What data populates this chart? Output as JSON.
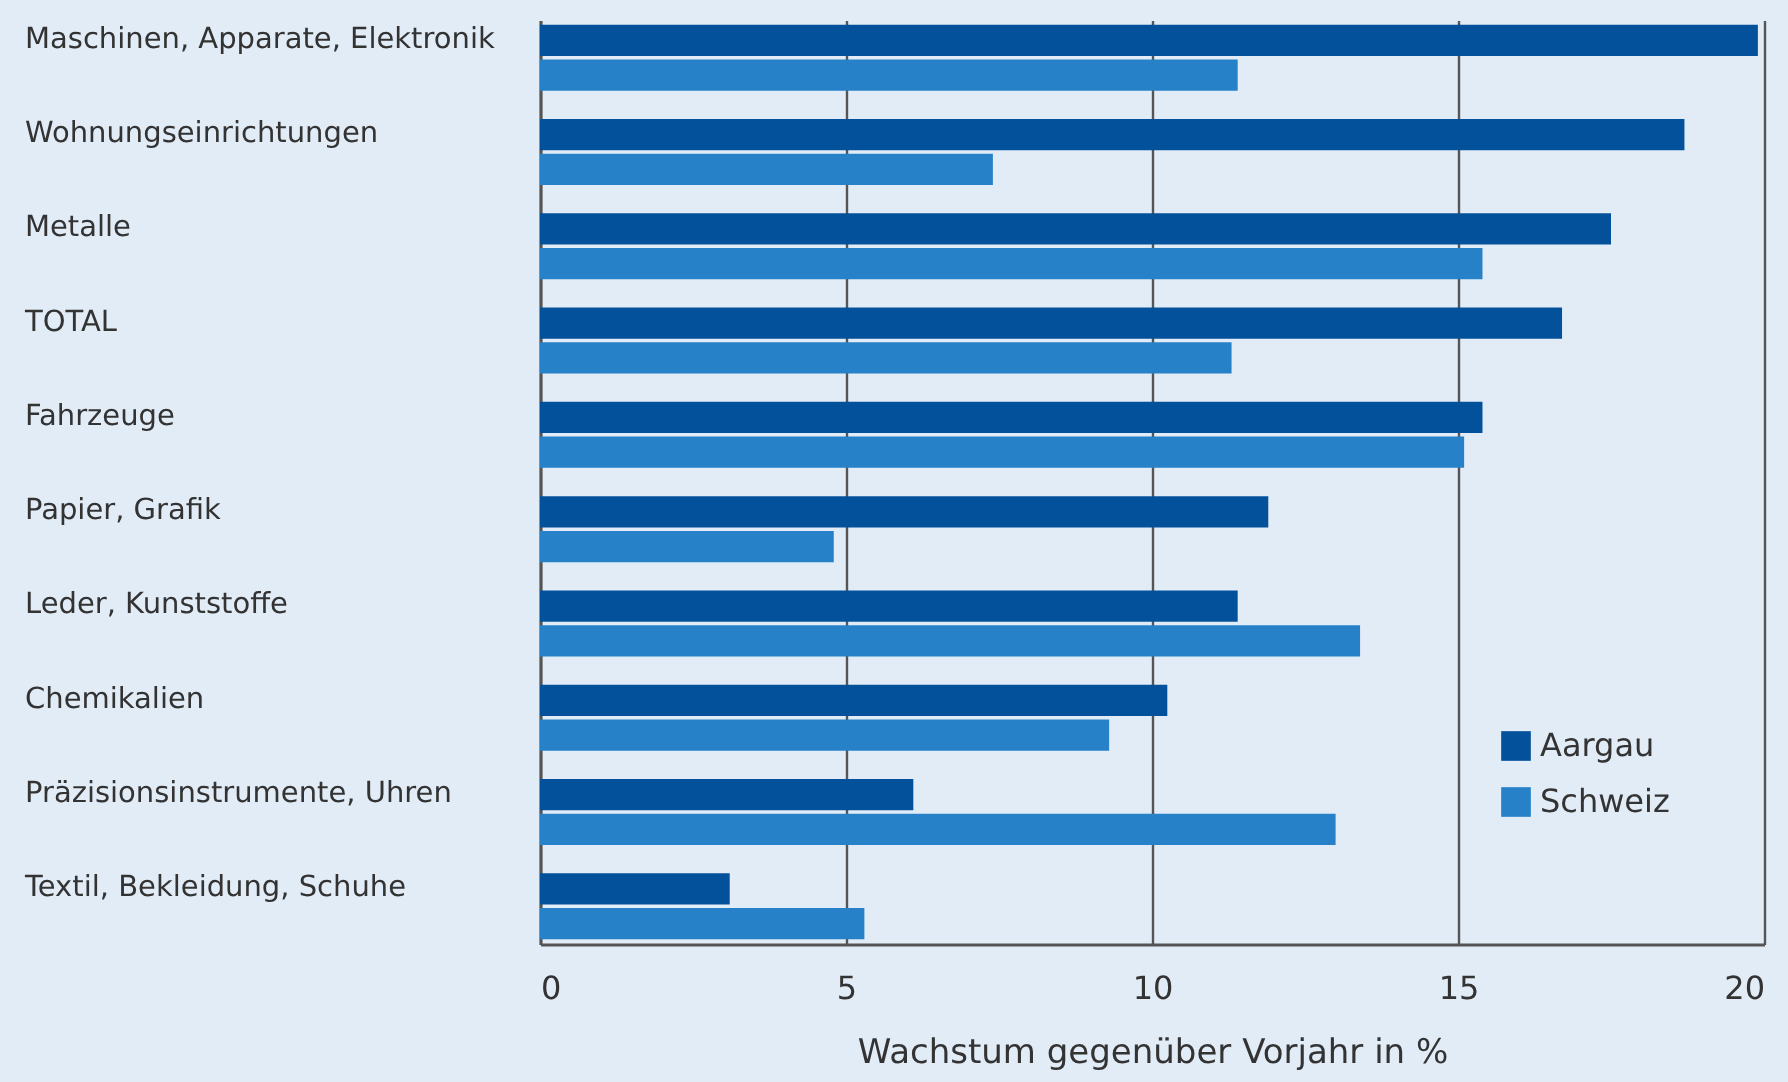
{
  "chart_data": {
    "type": "bar",
    "orientation": "horizontal",
    "xlabel": "Wachstum gegenüber Vorjahr in %",
    "categories": [
      "Maschinen, Apparate, Elektronik",
      "Wohnungseinrichtungen",
      "Metalle",
      "TOTAL",
      "Fahrzeuge",
      "Papier, Grafik",
      "Leder, Kunststoffe",
      "Chemikalien",
      "Präzisionsinstrumente, Uhren",
      "Textil, Bekleidung, Schuhe"
    ],
    "series": [
      {
        "name": "Aargau",
        "color": "#03509b",
        "values": [
          19.9,
          18.7,
          17.5,
          16.7,
          15.4,
          11.9,
          11.4,
          10.25,
          6.1,
          3.1
        ]
      },
      {
        "name": "Schweiz",
        "color": "#2681c8",
        "values": [
          11.4,
          7.4,
          15.4,
          11.3,
          15.1,
          4.8,
          13.4,
          9.3,
          13.0,
          5.3
        ]
      }
    ],
    "xlim": [
      0,
      20
    ],
    "xticks": [
      0,
      5,
      10,
      15,
      20
    ],
    "grid": "x",
    "legend": "bottom right"
  }
}
